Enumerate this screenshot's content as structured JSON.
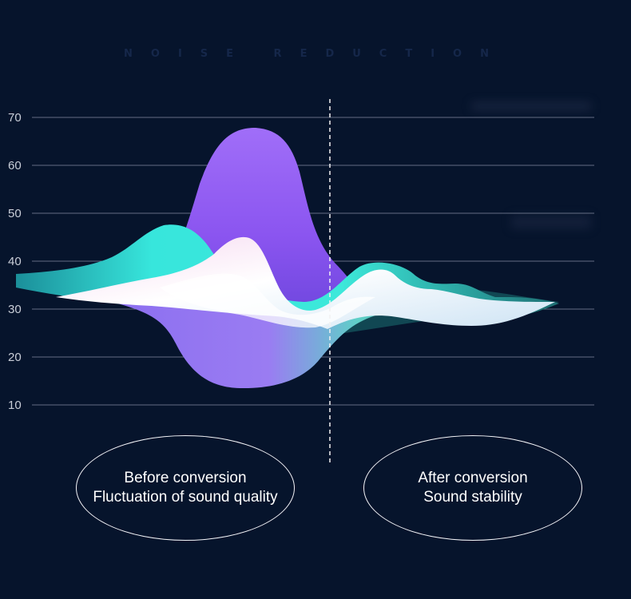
{
  "headline": "NOISE REDUCTION",
  "chart_data": {
    "type": "area",
    "y_ticks": [
      10,
      20,
      30,
      40,
      50,
      60,
      70
    ],
    "ylim": [
      0,
      70
    ],
    "grid": true,
    "divider": "dashed vertical line separating before and after",
    "series": [
      {
        "color": "#8b55f0"
      },
      {
        "color": "#37e6dc"
      },
      {
        "color": "#f2d6ee"
      }
    ]
  },
  "labels": {
    "before": {
      "line1": "Before conversion",
      "line2": "Fluctuation of sound quality"
    },
    "after": {
      "line1": "After conversion",
      "line2": "Sound stability"
    }
  },
  "colors": {
    "background": "#06142c",
    "grid": "#8c93a8",
    "tick_text": "#c9ced8",
    "divider": "#f2f2f2"
  }
}
